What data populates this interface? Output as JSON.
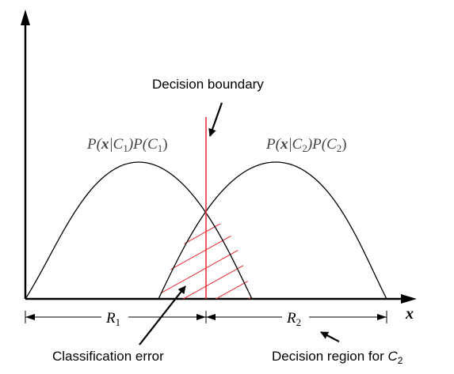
{
  "labels": {
    "decision_boundary": "Decision boundary",
    "class1_density": {
      "p1": "P(",
      "x": "x",
      "mid": "|C",
      "sub1": "1",
      "p2": ")P(C",
      "sub2": "1",
      "end": ")"
    },
    "class2_density": {
      "p1": "P(",
      "x": "x",
      "mid": "|C",
      "sub1": "2",
      "p2": ")P(C",
      "sub2": "2",
      "end": ")"
    },
    "x_axis": "x",
    "region1": {
      "letter": "R",
      "sub": "1"
    },
    "region2": {
      "letter": "R",
      "sub": "2"
    },
    "classification_error": "Classification error",
    "decision_region_c2": {
      "text": "Decision region for ",
      "var": "C",
      "sub": "2"
    }
  },
  "colors": {
    "axis": "#000000",
    "curve": "#000000",
    "boundary": "#e8262d",
    "hatch": "#e8262d",
    "text": "#000000"
  }
}
